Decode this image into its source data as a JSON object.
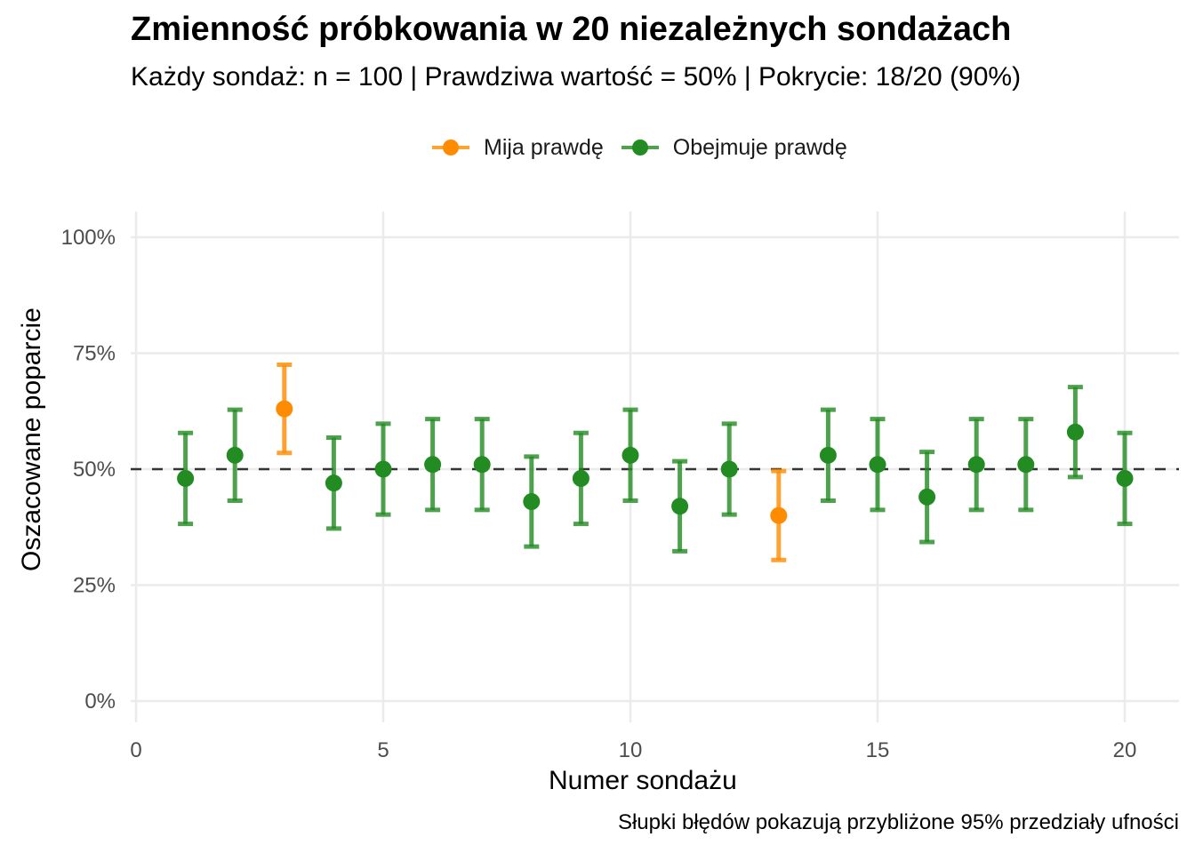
{
  "title": "Zmienność próbkowania w 20 niezależnych sondażach",
  "subtitle": "Każdy sondaż: n = 100 | Prawdziwa wartość = 50% | Pokrycie: 18/20 (90%)",
  "caption": "Słupki błędów pokazują przybliżone 95% przedziały ufności",
  "legend": {
    "items": [
      {
        "label": "Mija prawdę",
        "color": "#FF8C00"
      },
      {
        "label": "Obejmuje prawdę",
        "color": "#228B22"
      }
    ]
  },
  "chart_data": {
    "type": "scatter",
    "title": "Zmienność próbkowania w 20 niezależnych sondażach",
    "subtitle": "Każdy sondaż: n = 100 | Prawdziwa wartość = 50% | Pokrycie: 18/20 (90%)",
    "xlabel": "Numer sondażu",
    "ylabel": "Oszacowane poparcie",
    "xlim": [
      0,
      21.1
    ],
    "ylim": [
      0,
      100
    ],
    "x_ticks": [
      0,
      5,
      10,
      15,
      20
    ],
    "x_tick_labels": [
      "0",
      "5",
      "10",
      "15",
      "20"
    ],
    "y_ticks": [
      0,
      25,
      50,
      75,
      100
    ],
    "y_tick_labels": [
      "0%",
      "25%",
      "50%",
      "75%",
      "100%"
    ],
    "grid": true,
    "legend_position": "top",
    "reference_line": {
      "y": 50,
      "style": "dashed",
      "color": "#333333"
    },
    "series": [
      {
        "name": "Mija prawdę",
        "color": "#FF8C00"
      },
      {
        "name": "Obejmuje prawdę",
        "color": "#228B22"
      }
    ],
    "points": [
      {
        "poll": 1,
        "estimate": 48,
        "lower": 38.2,
        "upper": 57.8,
        "series": "Obejmuje prawdę"
      },
      {
        "poll": 2,
        "estimate": 53,
        "lower": 43.2,
        "upper": 62.8,
        "series": "Obejmuje prawdę"
      },
      {
        "poll": 3,
        "estimate": 63,
        "lower": 53.5,
        "upper": 72.5,
        "series": "Mija prawdę"
      },
      {
        "poll": 4,
        "estimate": 47,
        "lower": 37.2,
        "upper": 56.8,
        "series": "Obejmuje prawdę"
      },
      {
        "poll": 5,
        "estimate": 50,
        "lower": 40.2,
        "upper": 59.8,
        "series": "Obejmuje prawdę"
      },
      {
        "poll": 6,
        "estimate": 51,
        "lower": 41.2,
        "upper": 60.8,
        "series": "Obejmuje prawdę"
      },
      {
        "poll": 7,
        "estimate": 51,
        "lower": 41.2,
        "upper": 60.8,
        "series": "Obejmuje prawdę"
      },
      {
        "poll": 8,
        "estimate": 43,
        "lower": 33.3,
        "upper": 52.7,
        "series": "Obejmuje prawdę"
      },
      {
        "poll": 9,
        "estimate": 48,
        "lower": 38.2,
        "upper": 57.8,
        "series": "Obejmuje prawdę"
      },
      {
        "poll": 10,
        "estimate": 53,
        "lower": 43.2,
        "upper": 62.8,
        "series": "Obejmuje prawdę"
      },
      {
        "poll": 11,
        "estimate": 42,
        "lower": 32.3,
        "upper": 51.7,
        "series": "Obejmuje prawdę"
      },
      {
        "poll": 12,
        "estimate": 50,
        "lower": 40.2,
        "upper": 59.8,
        "series": "Obejmuje prawdę"
      },
      {
        "poll": 13,
        "estimate": 40,
        "lower": 30.4,
        "upper": 49.6,
        "series": "Mija prawdę"
      },
      {
        "poll": 14,
        "estimate": 53,
        "lower": 43.2,
        "upper": 62.8,
        "series": "Obejmuje prawdę"
      },
      {
        "poll": 15,
        "estimate": 51,
        "lower": 41.2,
        "upper": 60.8,
        "series": "Obejmuje prawdę"
      },
      {
        "poll": 16,
        "estimate": 44,
        "lower": 34.3,
        "upper": 53.7,
        "series": "Obejmuje prawdę"
      },
      {
        "poll": 17,
        "estimate": 51,
        "lower": 41.2,
        "upper": 60.8,
        "series": "Obejmuje prawdę"
      },
      {
        "poll": 18,
        "estimate": 51,
        "lower": 41.2,
        "upper": 60.8,
        "series": "Obejmuje prawdę"
      },
      {
        "poll": 19,
        "estimate": 58,
        "lower": 48.3,
        "upper": 67.7,
        "series": "Obejmuje prawdę"
      },
      {
        "poll": 20,
        "estimate": 48,
        "lower": 38.2,
        "upper": 57.8,
        "series": "Obejmuje prawdę"
      }
    ]
  }
}
